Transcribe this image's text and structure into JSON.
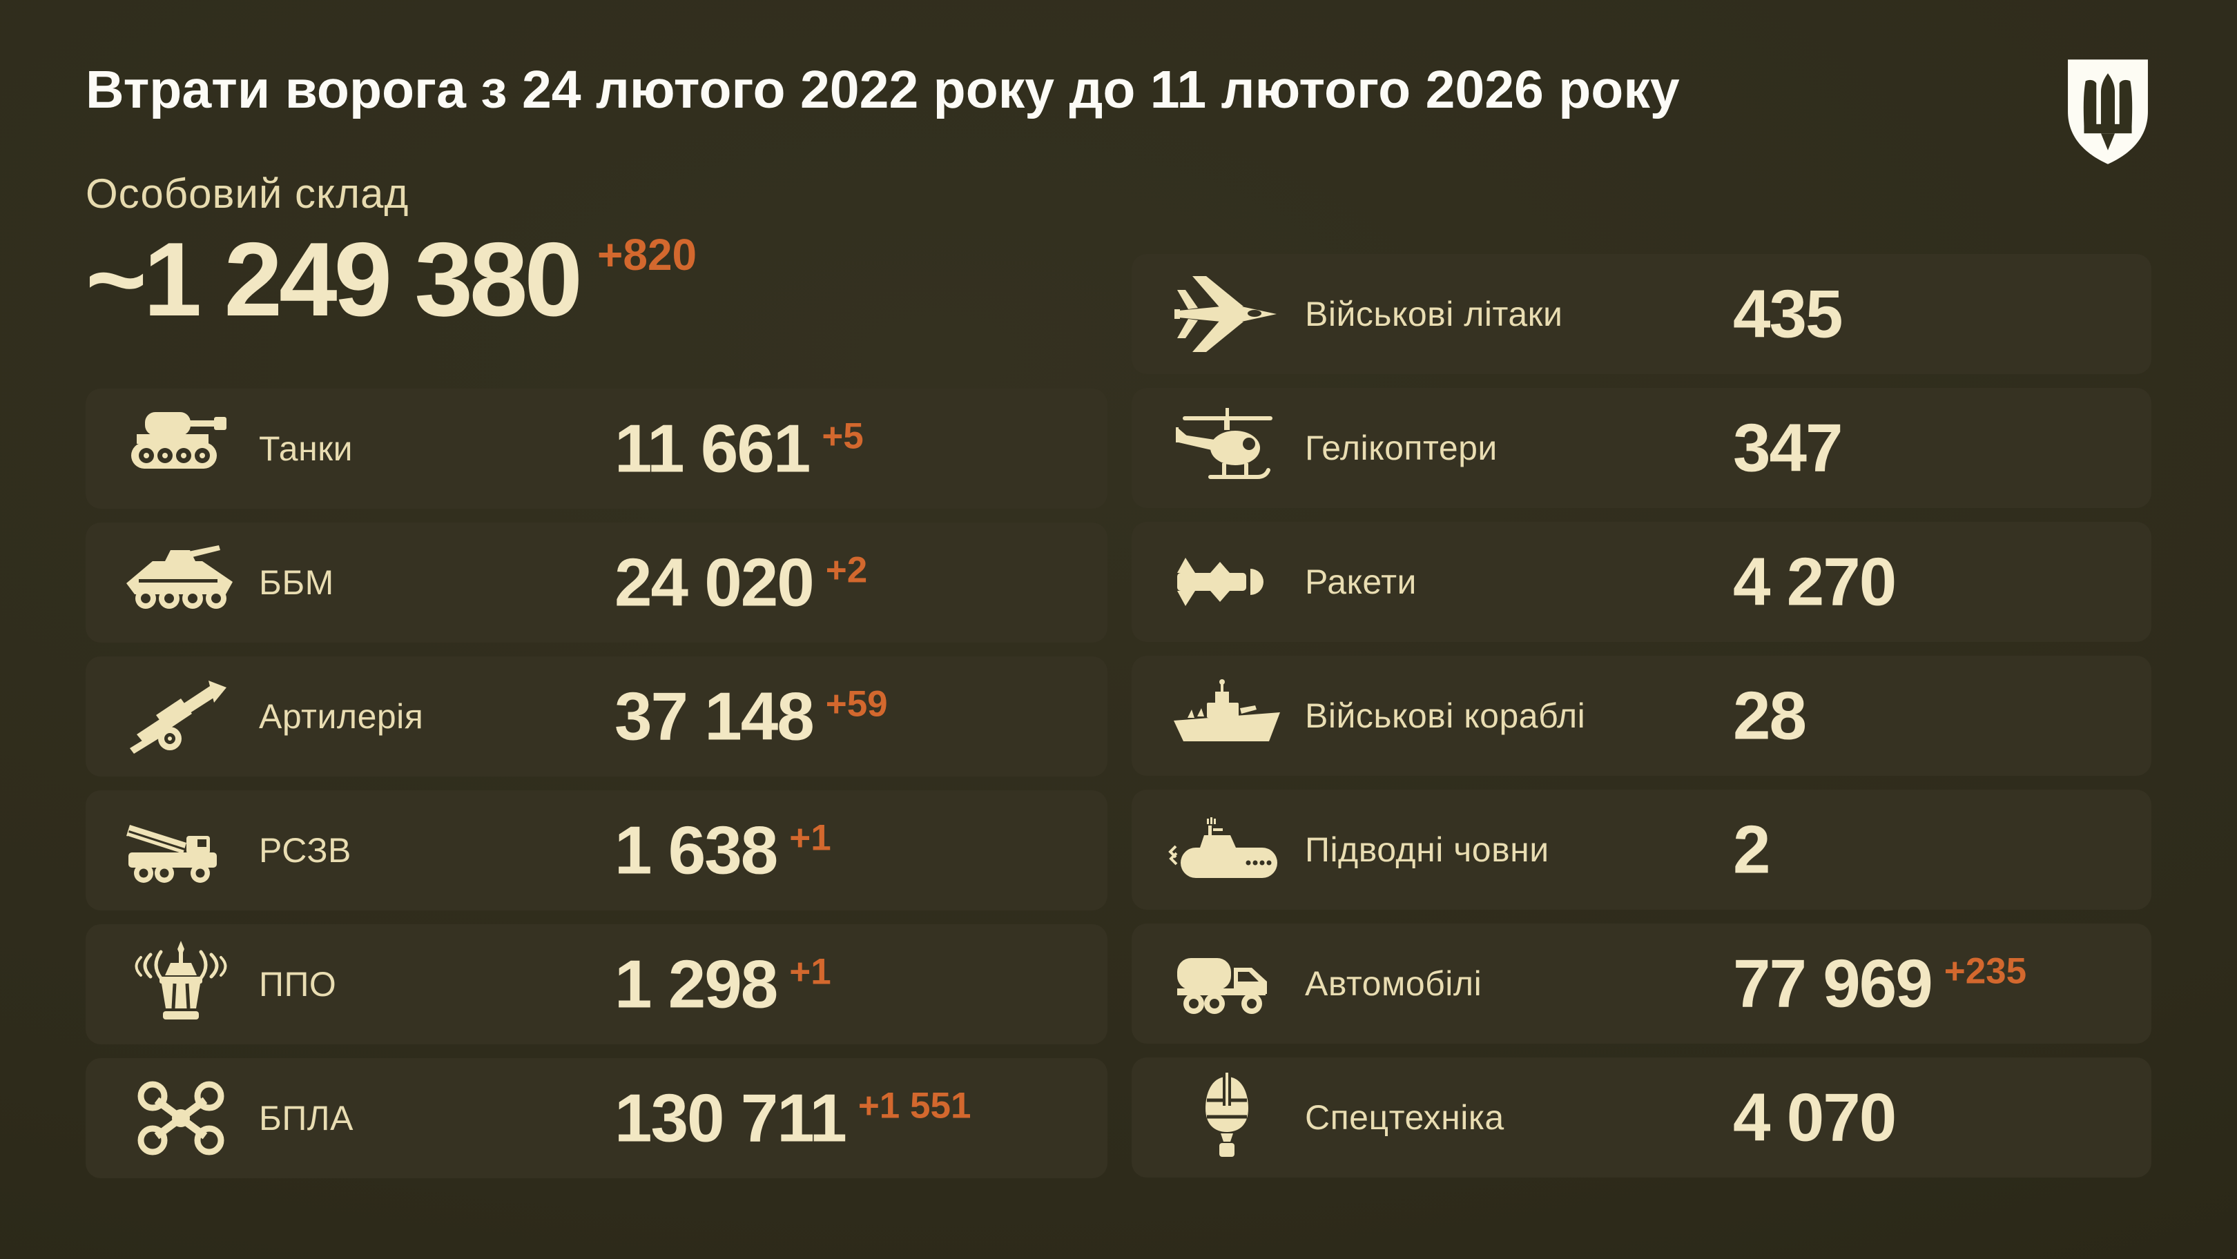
{
  "header": {
    "title": "Втрати ворога з 24 лютого 2022 року до 11 лютого 2026 року",
    "logo_icon": "armed-forces-emblem-icon"
  },
  "personnel": {
    "label": "Особовий склад",
    "value": "~1 249 380",
    "delta": "+820"
  },
  "columns": {
    "left": [
      {
        "icon": "tank-icon",
        "label": "Танки",
        "value": "11 661",
        "delta": "+5"
      },
      {
        "icon": "apc-icon",
        "label": "ББМ",
        "value": "24 020",
        "delta": "+2"
      },
      {
        "icon": "artillery-icon",
        "label": "Артилерія",
        "value": "37 148",
        "delta": "+59"
      },
      {
        "icon": "mlrs-icon",
        "label": "РСЗВ",
        "value": "1 638",
        "delta": "+1"
      },
      {
        "icon": "air-defense-icon",
        "label": "ППО",
        "value": "1 298",
        "delta": "+1"
      },
      {
        "icon": "drone-icon",
        "label": "БПЛА",
        "value": "130 711",
        "delta": "+1 551"
      }
    ],
    "right": [
      {
        "icon": "jet-icon",
        "label": "Військові літаки",
        "value": "435",
        "delta": ""
      },
      {
        "icon": "helicopter-icon",
        "label": "Гелікоптери",
        "value": "347",
        "delta": ""
      },
      {
        "icon": "missile-icon",
        "label": "Ракети",
        "value": "4 270",
        "delta": ""
      },
      {
        "icon": "warship-icon",
        "label": "Військові кораблі",
        "value": "28",
        "delta": ""
      },
      {
        "icon": "submarine-icon",
        "label": "Підводні човни",
        "value": "2",
        "delta": ""
      },
      {
        "icon": "truck-icon",
        "label": "Автомобілі",
        "value": "77 969",
        "delta": "+235"
      },
      {
        "icon": "special-equipment-icon",
        "label": "Спецтехніка",
        "value": "4 070",
        "delta": ""
      }
    ]
  },
  "colors": {
    "background": "#2e2b1b",
    "card": "#363222",
    "title": "#fcfbf6",
    "number": "#f2e7c3",
    "label": "#e9ddb2",
    "delta": "#d3682e",
    "icon": "#efe3b8"
  },
  "chart_data": {
    "type": "table",
    "title": "Втрати ворога з 24 лютого 2022 року до 11 лютого 2026 року",
    "items": [
      {
        "label": "Особовий склад",
        "value": 1249380,
        "approximate": true,
        "delta": 820
      },
      {
        "label": "Танки",
        "value": 11661,
        "delta": 5
      },
      {
        "label": "ББМ",
        "value": 24020,
        "delta": 2
      },
      {
        "label": "Артилерія",
        "value": 37148,
        "delta": 59
      },
      {
        "label": "РСЗВ",
        "value": 1638,
        "delta": 1
      },
      {
        "label": "ППО",
        "value": 1298,
        "delta": 1
      },
      {
        "label": "БПЛА",
        "value": 130711,
        "delta": 1551
      },
      {
        "label": "Військові літаки",
        "value": 435,
        "delta": 0
      },
      {
        "label": "Гелікоптери",
        "value": 347,
        "delta": 0
      },
      {
        "label": "Ракети",
        "value": 4270,
        "delta": 0
      },
      {
        "label": "Військові кораблі",
        "value": 28,
        "delta": 0
      },
      {
        "label": "Підводні човни",
        "value": 2,
        "delta": 0
      },
      {
        "label": "Автомобілі",
        "value": 77969,
        "delta": 235
      },
      {
        "label": "Спецтехніка",
        "value": 4070,
        "delta": 0
      }
    ]
  }
}
